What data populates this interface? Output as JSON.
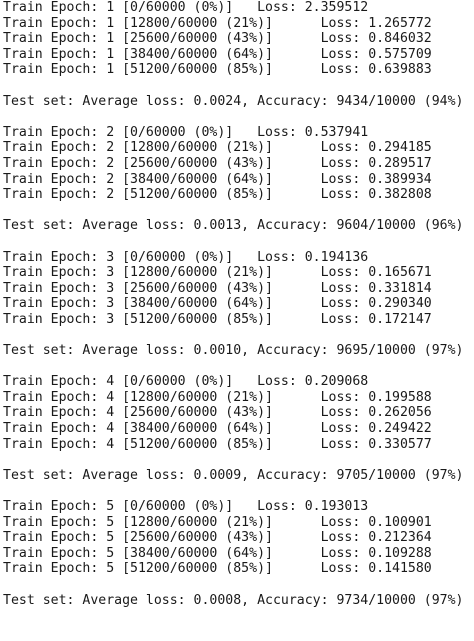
{
  "terminal": {
    "lines": [
      "Train Epoch: 1 [0/60000 (0%)]   Loss: 2.359512",
      "Train Epoch: 1 [12800/60000 (21%)]      Loss: 1.265772",
      "Train Epoch: 1 [25600/60000 (43%)]      Loss: 0.846032",
      "Train Epoch: 1 [38400/60000 (64%)]      Loss: 0.575709",
      "Train Epoch: 1 [51200/60000 (85%)]      Loss: 0.639883",
      "",
      "Test set: Average loss: 0.0024, Accuracy: 9434/10000 (94%)",
      "",
      "Train Epoch: 2 [0/60000 (0%)]   Loss: 0.537941",
      "Train Epoch: 2 [12800/60000 (21%)]      Loss: 0.294185",
      "Train Epoch: 2 [25600/60000 (43%)]      Loss: 0.289517",
      "Train Epoch: 2 [38400/60000 (64%)]      Loss: 0.389934",
      "Train Epoch: 2 [51200/60000 (85%)]      Loss: 0.382808",
      "",
      "Test set: Average loss: 0.0013, Accuracy: 9604/10000 (96%)",
      "",
      "Train Epoch: 3 [0/60000 (0%)]   Loss: 0.194136",
      "Train Epoch: 3 [12800/60000 (21%)]      Loss: 0.165671",
      "Train Epoch: 3 [25600/60000 (43%)]      Loss: 0.331814",
      "Train Epoch: 3 [38400/60000 (64%)]      Loss: 0.290340",
      "Train Epoch: 3 [51200/60000 (85%)]      Loss: 0.172147",
      "",
      "Test set: Average loss: 0.0010, Accuracy: 9695/10000 (97%)",
      "",
      "Train Epoch: 4 [0/60000 (0%)]   Loss: 0.209068",
      "Train Epoch: 4 [12800/60000 (21%)]      Loss: 0.199588",
      "Train Epoch: 4 [25600/60000 (43%)]      Loss: 0.262056",
      "Train Epoch: 4 [38400/60000 (64%)]      Loss: 0.249422",
      "Train Epoch: 4 [51200/60000 (85%)]      Loss: 0.330577",
      "",
      "Test set: Average loss: 0.0009, Accuracy: 9705/10000 (97%)",
      "",
      "Train Epoch: 5 [0/60000 (0%)]   Loss: 0.193013",
      "Train Epoch: 5 [12800/60000 (21%)]      Loss: 0.100901",
      "Train Epoch: 5 [25600/60000 (43%)]      Loss: 0.212364",
      "Train Epoch: 5 [38400/60000 (64%)]      Loss: 0.109288",
      "Train Epoch: 5 [51200/60000 (85%)]      Loss: 0.141580",
      "",
      "Test set: Average loss: 0.0008, Accuracy: 9734/10000 (97%)"
    ]
  }
}
